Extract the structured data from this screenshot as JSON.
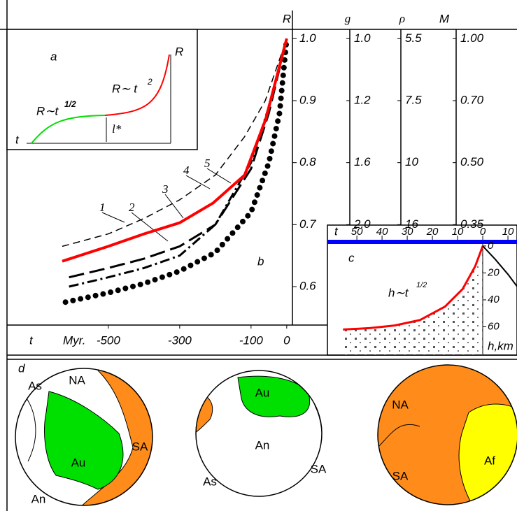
{
  "chart_data": [
    {
      "type": "line",
      "panel_label": "b",
      "y_label": "R",
      "x_label": "t",
      "x_unit": "Myr.",
      "xlim": [
        -784,
        16
      ],
      "ylim": [
        0.538,
        1.015
      ],
      "xticks": [
        -500,
        -300,
        -100,
        0
      ],
      "yticks": [
        {
          "value": 1,
          "label": "1.0"
        },
        0.9,
        0.8,
        0.7,
        0.6
      ],
      "series": [
        {
          "name": "1",
          "color": "#000000",
          "style": "dashed",
          "x": [
            -629,
            -500,
            -400,
            -300,
            -200,
            -118,
            -60,
            0
          ],
          "values": [
            0.665,
            0.685,
            0.71,
            0.74,
            0.78,
            0.842,
            0.9,
            1.0
          ]
        },
        {
          "name": "2",
          "color": "#000000",
          "style": "longdash",
          "x": [
            -610,
            -500,
            -400,
            -300,
            -200,
            -100,
            -50,
            0
          ],
          "values": [
            0.615,
            0.63,
            0.645,
            0.665,
            0.7,
            0.79,
            0.88,
            1.0
          ]
        },
        {
          "name": "3",
          "color": "#000000",
          "style": "dashdot",
          "x": [
            -610,
            -500,
            -400,
            -300,
            -200,
            -100,
            -50,
            0
          ],
          "values": [
            0.6,
            0.615,
            0.63,
            0.65,
            0.7,
            0.8,
            0.89,
            1.0
          ]
        },
        {
          "name": "4",
          "color": "#000000",
          "style": "dotted",
          "x": [
            -620,
            -500,
            -400,
            -300,
            -200,
            -100,
            -50,
            -20,
            0
          ],
          "values": [
            0.575,
            0.59,
            0.605,
            0.625,
            0.655,
            0.72,
            0.8,
            0.88,
            1.0
          ]
        },
        {
          "name": "5",
          "color": "#ff0000",
          "style": "solid",
          "x": [
            -629,
            -500,
            -400,
            -300,
            -206,
            -118,
            -59,
            0
          ],
          "values": [
            0.641,
            0.665,
            0.685,
            0.703,
            0.735,
            0.78,
            0.87,
            1.0
          ]
        }
      ],
      "secondary_scales": [
        {
          "label": "g",
          "ticks": [
            "1.0",
            "1.2",
            "1.6",
            "2.0"
          ]
        },
        {
          "label": "ρ",
          "ticks": [
            "5.5",
            "7.5",
            "10",
            "16"
          ]
        },
        {
          "label": "M",
          "ticks": [
            "1.00",
            "0.70",
            "0.50",
            "0.35"
          ]
        }
      ]
    },
    {
      "type": "line",
      "panel_label": "c",
      "formula": "h∼t",
      "formula_exponent": "1/2",
      "x_label": "t",
      "y_label": "h,km",
      "xlim": [
        61.7,
        -13.6
      ],
      "ylim": [
        81,
        -2
      ],
      "xticks": [
        50,
        40,
        30,
        20,
        10,
        0,
        {
          "value": -10,
          "label": "10"
        }
      ],
      "yticks": [
        0,
        20,
        40,
        60
      ],
      "series": [
        {
          "color": "#ff0000",
          "x": [
            55.5,
            45,
            35,
            25,
            15,
            8,
            3,
            0
          ],
          "values": [
            62,
            61,
            59,
            55,
            45,
            32,
            15,
            0
          ]
        },
        {
          "color": "#000000",
          "x": [
            0,
            -5,
            -10,
            -13.6
          ],
          "values": [
            0,
            10,
            21,
            30
          ]
        }
      ]
    }
  ],
  "panel_a": {
    "label": "a",
    "y_label": "R",
    "x_label": "t",
    "left_formula": "R∼t",
    "left_exponent": "1/2",
    "right_formula": "R∼ t",
    "right_exponent": "2",
    "gap_label": "l*"
  },
  "panel_d": {
    "label": "d",
    "globes": [
      [
        "As",
        "NA",
        "Au",
        "SA",
        "An"
      ],
      [
        "Au",
        "An",
        "As",
        "SA"
      ],
      [
        "NA",
        "SA",
        "Af"
      ]
    ]
  }
}
